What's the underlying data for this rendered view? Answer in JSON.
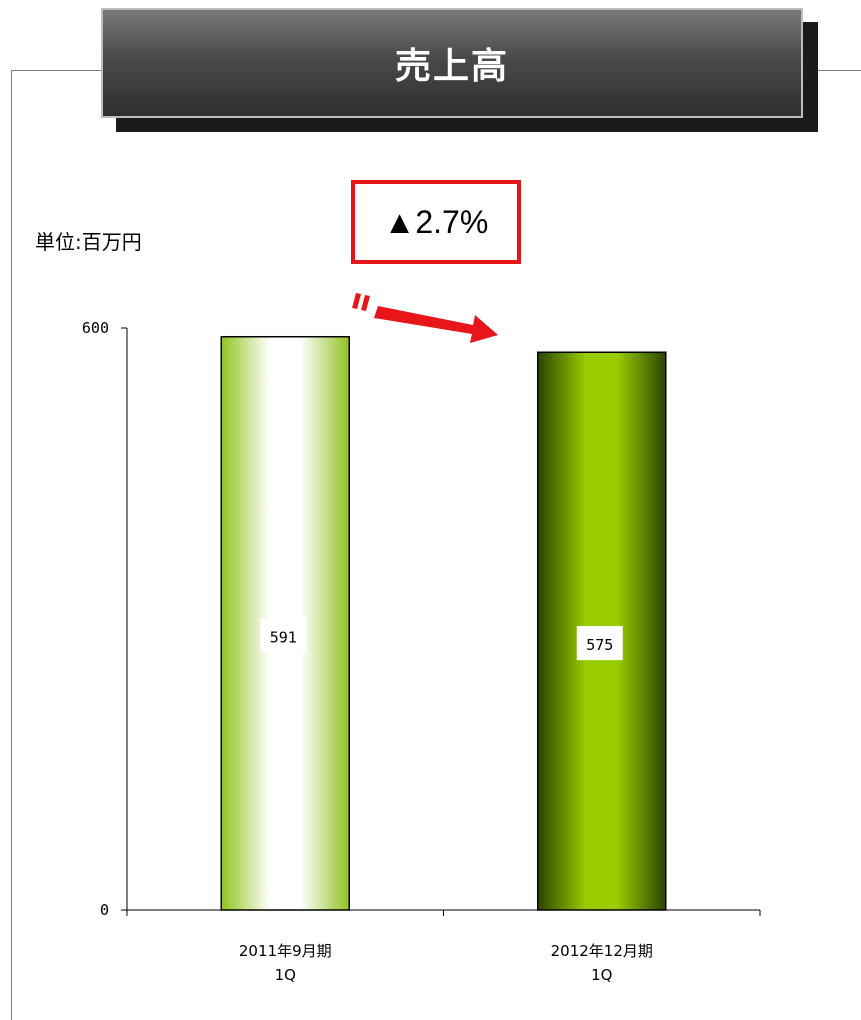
{
  "title": "売上高",
  "unit_label": "単位:百万円",
  "change_label": "▲2.7%",
  "colors": {
    "title_bg": "#4a4a4a",
    "change_border": "#e8161b",
    "arrow": "#e8161b",
    "bar_1": "#9acd32",
    "bar_2": "#8cbf00"
  },
  "chart_data": {
    "type": "bar",
    "categories": [
      [
        "2011年9月期",
        "1Q"
      ],
      [
        "2012年12月期",
        "1Q"
      ]
    ],
    "values": [
      591,
      575
    ],
    "data_labels": [
      "591",
      "575"
    ],
    "ylim": [
      0,
      600
    ],
    "yticks": [
      0,
      600
    ],
    "ytick_labels": [
      "0",
      "600"
    ],
    "grid": false,
    "legend": "none"
  }
}
